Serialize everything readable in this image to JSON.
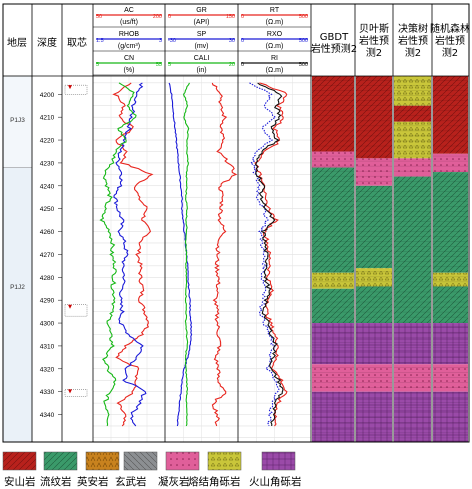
{
  "columns": {
    "strata_header": "地层",
    "depth_header": "深度",
    "core_header": "取芯",
    "pred_gbdt": "GBDT岩性预测2",
    "pred_bayes": "贝叶斯岩性预测2",
    "pred_tree": "决策树岩性预测2",
    "pred_forest": "随机森林岩性预测2"
  },
  "strata": [
    {
      "name": "P1J3",
      "top": 4192,
      "bottom": 4232
    },
    {
      "name": "P1J2",
      "top": 4232,
      "bottom": 4352
    }
  ],
  "depth_axis": {
    "min": 4192,
    "max": 4352,
    "ticks": [
      4200,
      4210,
      4220,
      4230,
      4240,
      4250,
      4260,
      4270,
      4280,
      4290,
      4300,
      4310,
      4320,
      4330,
      4340
    ]
  },
  "tracks": [
    {
      "curves": [
        {
          "name": "AC",
          "unit": "(us/ft)",
          "min": "50",
          "max": "200",
          "color": "#e8251e"
        },
        {
          "name": "RHOB",
          "unit": "(g/cm³)",
          "min": "1.5",
          "max": "3",
          "color": "#1a1ad8"
        },
        {
          "name": "CN",
          "unit": "(%)",
          "min": "5",
          "max": "55",
          "color": "#17b817"
        }
      ]
    },
    {
      "curves": [
        {
          "name": "GR",
          "unit": "(API)",
          "min": "0",
          "max": "150",
          "color": "#e8251e"
        },
        {
          "name": "SP",
          "unit": "(mv)",
          "min": "-30",
          "max": "30",
          "color": "#1a1ad8"
        },
        {
          "name": "CALI",
          "unit": "(in)",
          "min": "5",
          "max": "20",
          "color": "#17b817"
        }
      ]
    },
    {
      "curves": [
        {
          "name": "RT",
          "unit": "(Ω.m)",
          "min": "0",
          "max": "500",
          "color": "#e8251e"
        },
        {
          "name": "RXO",
          "unit": "(Ω.m)",
          "min": "0",
          "max": "500",
          "color": "#1a1ad8"
        },
        {
          "name": "RI",
          "unit": "(Ω.m)",
          "min": "0",
          "max": "500",
          "color": "#111111"
        }
      ]
    }
  ],
  "legend": [
    {
      "name": "安山岩",
      "color": "#b8211c"
    },
    {
      "name": "流纹岩",
      "color": "#3a9a6a"
    },
    {
      "name": "英安岩",
      "color": "#c8821e"
    },
    {
      "name": "玄武岩",
      "color": "#8c8f92"
    },
    {
      "name": "凝灰岩",
      "color": "#e05f9a"
    },
    {
      "name": "熔结角砾岩",
      "color": "#c9c63a"
    },
    {
      "name": "火山角砾岩",
      "color": "#9a4aa8"
    }
  ],
  "chart_data": {
    "type": "line",
    "depth_units": "m",
    "depth_range": [
      4192,
      4352
    ],
    "series": [
      {
        "name": "AC",
        "track": 1,
        "range": [
          50,
          200
        ],
        "depth": [
          4195,
          4200,
          4205,
          4210,
          4215,
          4220,
          4225,
          4230,
          4235,
          4240,
          4245,
          4250,
          4255,
          4260,
          4265,
          4270,
          4275,
          4280,
          4285,
          4290,
          4295,
          4300,
          4305,
          4310,
          4315,
          4320,
          4325,
          4330,
          4335,
          4340,
          4345
        ],
        "values": [
          130,
          95,
          115,
          105,
          135,
          95,
          120,
          110,
          175,
          140,
          145,
          165,
          155,
          170,
          150,
          145,
          150,
          150,
          155,
          150,
          160,
          170,
          155,
          120,
          95,
          150,
          140,
          135,
          100,
          115,
          110
        ]
      },
      {
        "name": "RHOB",
        "track": 1,
        "range": [
          1.5,
          3
        ],
        "depth": [
          4195,
          4200,
          4205,
          4210,
          4215,
          4220,
          4225,
          4230,
          4235,
          4240,
          4245,
          4250,
          4255,
          4260,
          4265,
          4270,
          4275,
          4280,
          4285,
          4290,
          4295,
          4300,
          4305,
          4310,
          4315,
          4320,
          4325,
          4330,
          4335,
          4340,
          4345
        ],
        "values": [
          2.55,
          2.4,
          2.35,
          2.3,
          2.25,
          2.15,
          2.05,
          2.0,
          2.1,
          2.05,
          1.95,
          2.0,
          2.1,
          2.05,
          2.15,
          2.2,
          2.1,
          2.15,
          2.1,
          2.05,
          2.1,
          2.05,
          2.25,
          2.55,
          2.45,
          2.2,
          2.15,
          2.6,
          2.5,
          2.3,
          2.4
        ]
      },
      {
        "name": "CN",
        "track": 1,
        "range": [
          5,
          55
        ],
        "depth": [
          4195,
          4200,
          4205,
          4210,
          4215,
          4220,
          4225,
          4230,
          4235,
          4240,
          4245,
          4250,
          4255,
          4260,
          4265,
          4270,
          4275,
          4280,
          4285,
          4290,
          4295,
          4300,
          4305,
          4310,
          4315,
          4320,
          4325,
          4330,
          4335,
          4340,
          4345
        ],
        "values": [
          24,
          34,
          30,
          35,
          22,
          28,
          20,
          18,
          12,
          14,
          16,
          12,
          10,
          16,
          18,
          17,
          20,
          19,
          18,
          20,
          17,
          15,
          16,
          18,
          12,
          14,
          20,
          16,
          12,
          16,
          14
        ]
      },
      {
        "name": "GR",
        "track": 2,
        "range": [
          0,
          150
        ],
        "depth": [
          4195,
          4200,
          4205,
          4210,
          4215,
          4220,
          4225,
          4230,
          4235,
          4240,
          4245,
          4250,
          4255,
          4260,
          4265,
          4270,
          4275,
          4280,
          4285,
          4290,
          4295,
          4300,
          4305,
          4310,
          4315,
          4320,
          4325,
          4330,
          4335,
          4340,
          4345
        ],
        "values": [
          100,
          120,
          115,
          125,
          118,
          122,
          110,
          135,
          148,
          115,
          120,
          118,
          115,
          125,
          112,
          110,
          108,
          112,
          110,
          105,
          108,
          110,
          112,
          115,
          105,
          112,
          110,
          128,
          100,
          110,
          108
        ]
      },
      {
        "name": "SP",
        "track": 2,
        "range": [
          -30,
          30
        ],
        "depth": [
          4195,
          4200,
          4205,
          4210,
          4215,
          4220,
          4225,
          4230,
          4235,
          4240,
          4245,
          4250,
          4255,
          4260,
          4265,
          4270,
          4275,
          4280,
          4285,
          4290,
          4295,
          4300,
          4305,
          4310,
          4315,
          4320,
          4325,
          4330,
          4335,
          4340,
          4345
        ],
        "values": [
          -28,
          -26,
          -25,
          -24,
          -23,
          -22,
          -21,
          -20,
          -19,
          -18,
          -17,
          -17,
          -16,
          -15,
          -14,
          -13,
          -12,
          -12,
          -11,
          -10,
          -10,
          -9,
          -9,
          -10,
          -12,
          -15,
          -17,
          -18,
          -19,
          -20,
          -21
        ]
      },
      {
        "name": "CALI",
        "track": 2,
        "range": [
          5,
          20
        ],
        "depth": [
          4195,
          4200,
          4205,
          4210,
          4215,
          4220,
          4225,
          4230,
          4235,
          4240,
          4245,
          4250,
          4255,
          4260,
          4265,
          4270,
          4275,
          4280,
          4285,
          4290,
          4295,
          4300,
          4305,
          4310,
          4315,
          4320,
          4325,
          4330,
          4335,
          4340,
          4345
        ],
        "values": [
          9.8,
          8.7,
          9.5,
          8.6,
          9.6,
          9.4,
          9.3,
          9.6,
          9.2,
          9.3,
          9.1,
          9.4,
          9.2,
          9.3,
          9.1,
          9.2,
          9.1,
          9.2,
          9.2,
          9.1,
          9.2,
          9.1,
          9.3,
          9.4,
          9.0,
          9.1,
          9.3,
          9.4,
          9.2,
          9.3,
          9.2
        ]
      },
      {
        "name": "RT",
        "track": 3,
        "range": [
          0,
          500
        ],
        "depth": [
          4195,
          4200,
          4205,
          4210,
          4215,
          4220,
          4225,
          4230,
          4235,
          4240,
          4245,
          4250,
          4255,
          4260,
          4265,
          4270,
          4275,
          4280,
          4285,
          4290,
          4295,
          4300,
          4305,
          4310,
          4315,
          4320,
          4325,
          4330,
          4335,
          4340,
          4345
        ],
        "values": [
          150,
          350,
          280,
          320,
          250,
          300,
          180,
          120,
          140,
          190,
          170,
          210,
          260,
          180,
          200,
          210,
          220,
          200,
          230,
          210,
          190,
          220,
          250,
          280,
          260,
          240,
          300,
          330,
          270,
          260,
          250
        ]
      },
      {
        "name": "RXO",
        "track": 3,
        "range": [
          0,
          500
        ],
        "depth": [
          4195,
          4200,
          4205,
          4210,
          4215,
          4220,
          4225,
          4230,
          4235,
          4240,
          4245,
          4250,
          4255,
          4260,
          4265,
          4270,
          4275,
          4280,
          4285,
          4290,
          4295,
          4300,
          4305,
          4310,
          4315,
          4320,
          4325,
          4330,
          4335,
          4340,
          4345
        ],
        "values": [
          80,
          220,
          180,
          260,
          150,
          230,
          120,
          90,
          110,
          140,
          130,
          170,
          200,
          150,
          160,
          170,
          180,
          160,
          190,
          170,
          150,
          180,
          210,
          240,
          220,
          200,
          250,
          280,
          230,
          220,
          210
        ]
      },
      {
        "name": "RI",
        "track": 3,
        "range": [
          0,
          500
        ],
        "depth": [
          4195,
          4200,
          4205,
          4210,
          4215,
          4220,
          4225,
          4230,
          4235,
          4240,
          4245,
          4250,
          4255,
          4260,
          4265,
          4270,
          4275,
          4280,
          4285,
          4290,
          4295,
          4300,
          4305,
          4310,
          4315,
          4320,
          4325,
          4330,
          4335,
          4340,
          4345
        ],
        "values": [
          120,
          300,
          260,
          290,
          230,
          270,
          160,
          110,
          130,
          170,
          150,
          190,
          240,
          170,
          180,
          190,
          200,
          180,
          210,
          190,
          170,
          200,
          230,
          260,
          240,
          220,
          280,
          310,
          250,
          240,
          230
        ]
      }
    ],
    "lithology_predictions": [
      {
        "name": "GBDT岩性预测2",
        "intervals": [
          {
            "top": 4192,
            "bottom": 4225,
            "lith": "安山岩"
          },
          {
            "top": 4225,
            "bottom": 4232,
            "lith": "凝灰岩"
          },
          {
            "top": 4232,
            "bottom": 4278,
            "lith": "流纹岩"
          },
          {
            "top": 4278,
            "bottom": 4285,
            "lith": "熔结角砾岩"
          },
          {
            "top": 4285,
            "bottom": 4300,
            "lith": "流纹岩"
          },
          {
            "top": 4300,
            "bottom": 4318,
            "lith": "火山角砾岩"
          },
          {
            "top": 4318,
            "bottom": 4330,
            "lith": "凝灰岩"
          },
          {
            "top": 4330,
            "bottom": 4352,
            "lith": "火山角砾岩"
          }
        ]
      },
      {
        "name": "贝叶斯岩性预测2",
        "intervals": [
          {
            "top": 4192,
            "bottom": 4228,
            "lith": "安山岩"
          },
          {
            "top": 4228,
            "bottom": 4240,
            "lith": "凝灰岩"
          },
          {
            "top": 4240,
            "bottom": 4276,
            "lith": "流纹岩"
          },
          {
            "top": 4276,
            "bottom": 4284,
            "lith": "熔结角砾岩"
          },
          {
            "top": 4284,
            "bottom": 4300,
            "lith": "流纹岩"
          },
          {
            "top": 4300,
            "bottom": 4318,
            "lith": "火山角砾岩"
          },
          {
            "top": 4318,
            "bottom": 4330,
            "lith": "凝灰岩"
          },
          {
            "top": 4330,
            "bottom": 4352,
            "lith": "火山角砾岩"
          }
        ]
      },
      {
        "name": "决策树岩性预测2",
        "intervals": [
          {
            "top": 4192,
            "bottom": 4205,
            "lith": "熔结角砾岩"
          },
          {
            "top": 4205,
            "bottom": 4212,
            "lith": "安山岩"
          },
          {
            "top": 4212,
            "bottom": 4228,
            "lith": "熔结角砾岩"
          },
          {
            "top": 4228,
            "bottom": 4236,
            "lith": "凝灰岩"
          },
          {
            "top": 4236,
            "bottom": 4300,
            "lith": "流纹岩"
          },
          {
            "top": 4300,
            "bottom": 4318,
            "lith": "火山角砾岩"
          },
          {
            "top": 4318,
            "bottom": 4330,
            "lith": "凝灰岩"
          },
          {
            "top": 4330,
            "bottom": 4352,
            "lith": "火山角砾岩"
          }
        ]
      },
      {
        "name": "随机森林岩性预测2",
        "intervals": [
          {
            "top": 4192,
            "bottom": 4226,
            "lith": "安山岩"
          },
          {
            "top": 4226,
            "bottom": 4234,
            "lith": "凝灰岩"
          },
          {
            "top": 4234,
            "bottom": 4278,
            "lith": "流纹岩"
          },
          {
            "top": 4278,
            "bottom": 4284,
            "lith": "熔结角砾岩"
          },
          {
            "top": 4284,
            "bottom": 4300,
            "lith": "流纹岩"
          },
          {
            "top": 4300,
            "bottom": 4318,
            "lith": "火山角砾岩"
          },
          {
            "top": 4318,
            "bottom": 4330,
            "lith": "凝灰岩"
          },
          {
            "top": 4330,
            "bottom": 4352,
            "lith": "火山角砾岩"
          }
        ]
      }
    ]
  }
}
